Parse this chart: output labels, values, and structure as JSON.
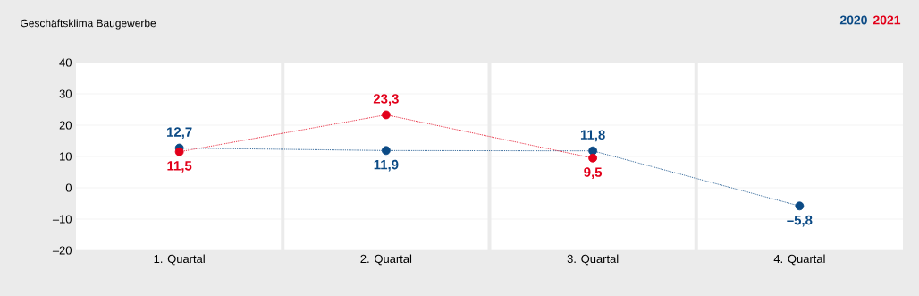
{
  "chart_data": {
    "type": "line",
    "title": "Geschäftsklima Baugewerbe",
    "categories": [
      "1. Quartal",
      "2. Quartal",
      "3. Quartal",
      "4. Quartal"
    ],
    "series": [
      {
        "name": "2020",
        "color": "#0b4a85",
        "values": [
          12.7,
          11.9,
          11.8,
          -5.8
        ],
        "value_labels": [
          "12,7",
          "11,9",
          "11,8",
          "–5,8"
        ]
      },
      {
        "name": "2021",
        "color": "#e2001a",
        "values": [
          11.5,
          23.3,
          9.5,
          null
        ],
        "value_labels": [
          "11,5",
          "23,3",
          "9,5",
          null
        ]
      }
    ],
    "ylim": [
      -20,
      40
    ],
    "yticks": [
      {
        "value": -20,
        "label": "–20"
      },
      {
        "value": -10,
        "label": "–10"
      },
      0,
      10,
      20,
      30,
      40
    ],
    "grid": "y",
    "legend": "top right",
    "marker": "circle",
    "line_style": "dotted"
  }
}
